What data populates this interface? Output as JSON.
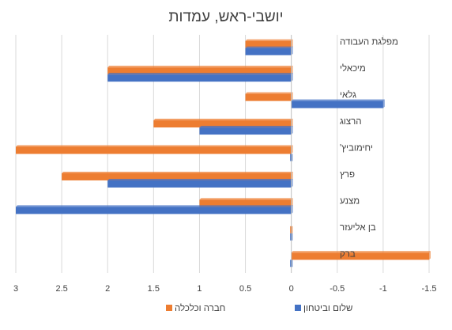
{
  "chart_data": {
    "type": "bar",
    "orientation": "horizontal",
    "title": "יושבי-ראש, עמדות",
    "xlim": [
      -1.5,
      3
    ],
    "x_ticks": [
      "3",
      "2.5",
      "2",
      "1.5",
      "1",
      "0.5",
      "0",
      "-0.5",
      "-1",
      "-1.5"
    ],
    "x_tick_values": [
      3,
      2.5,
      2,
      1.5,
      1,
      0.5,
      0,
      -0.5,
      -1,
      -1.5
    ],
    "x_axis_reversed": true,
    "grid": true,
    "legend_position": "bottom",
    "categories": [
      "מפלגת העבודה",
      "מיכאלי",
      "גלאי",
      "הרצוג",
      "יחימוביץ'",
      "פרץ",
      "מצנע",
      "בן אליעזר",
      "ברק"
    ],
    "series": [
      {
        "name": "שלום וביטחון",
        "color": "#4472C4",
        "values": [
          0.5,
          2,
          -1,
          1,
          0,
          2,
          3,
          0,
          0
        ]
      },
      {
        "name": "חברה וכלכלה",
        "color": "#ED7D31",
        "values": [
          0.5,
          2,
          0.5,
          1.5,
          3,
          2.5,
          1,
          0,
          -1.5
        ]
      }
    ]
  }
}
